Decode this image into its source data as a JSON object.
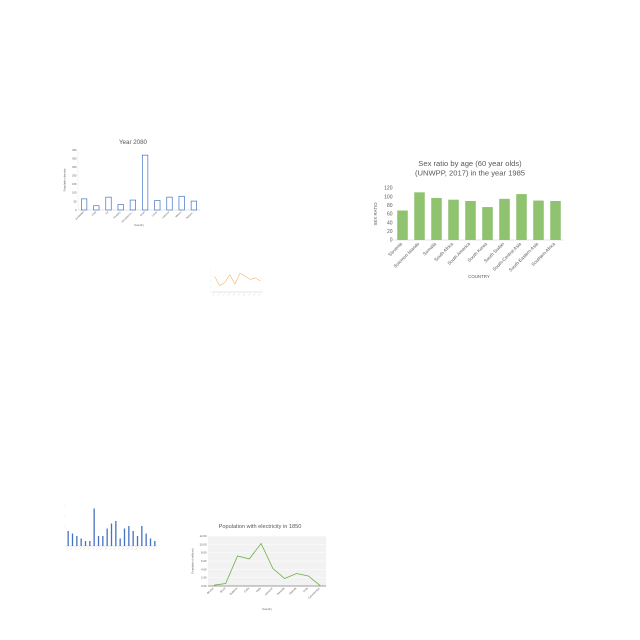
{
  "chart_data": [
    {
      "id": "c1",
      "type": "bar",
      "style": "outline",
      "title": "Year 2080",
      "xlabel": "Country",
      "ylabel": "Population density",
      "categories": [
        "Zimbabwe",
        "Chile",
        "Fiji",
        "Hungary",
        "Iran (Islamic...",
        "Israel",
        "Latvia",
        "Lebanon",
        "Mexico",
        "Netherl..."
      ],
      "values": [
        65,
        25,
        75,
        32,
        58,
        320,
        55,
        75,
        80,
        52
      ],
      "ylim": [
        0,
        350
      ],
      "yticks": [
        0,
        50,
        100,
        150,
        200,
        250,
        300,
        350
      ],
      "ytick_labels": [
        "0",
        "50",
        "100",
        "150",
        "200",
        "250",
        "300",
        "350"
      ],
      "color": "#4472c4"
    },
    {
      "id": "c2",
      "type": "bar",
      "title": "Sex ratio by age (60 year olds)\n(UNWPP, 2017) in the year 1985",
      "xlabel": "COUNTRY",
      "ylabel": "SEX RATIO",
      "categories": [
        "Slovenia",
        "Solomon Islands",
        "Somalia",
        "South Africa",
        "South America",
        "South Korea",
        "South Sudan",
        "South-Central Asia",
        "South-Eastern Asia",
        "Southern Africa"
      ],
      "values": [
        68,
        110,
        97,
        93,
        90,
        76,
        95,
        106,
        91,
        90
      ],
      "ylim": [
        0,
        120
      ],
      "yticks": [
        0,
        20,
        40,
        60,
        80,
        100,
        120
      ],
      "ytick_labels": [
        "0",
        "20",
        "40",
        "60",
        "80",
        "100",
        "120"
      ],
      "color": "#8fc370"
    },
    {
      "id": "c3",
      "type": "line",
      "title": "",
      "xlabel": "",
      "ylabel": "",
      "categories": [
        "",
        "",
        "",
        "",
        "",
        "",
        "",
        "",
        "",
        ""
      ],
      "values": [
        10,
        4,
        6,
        11,
        5,
        12,
        10,
        8,
        9,
        7
      ],
      "ylim": [
        0,
        14
      ],
      "color": "#ed9a45"
    },
    {
      "id": "c4",
      "type": "bar",
      "title": "",
      "xlabel": "",
      "ylabel": "",
      "categories": [
        "",
        "",
        "",
        "",
        "",
        "",
        "",
        "",
        "",
        "",
        "",
        "",
        "",
        "",
        "",
        "",
        "",
        "",
        "",
        "",
        ""
      ],
      "values": [
        6,
        5,
        4,
        3,
        2,
        2,
        15,
        4,
        4,
        7,
        9,
        10,
        3,
        7,
        8,
        6,
        4,
        8,
        5,
        3,
        2
      ],
      "ylim": [
        0,
        16
      ],
      "color": "#4472c4"
    },
    {
      "id": "c5",
      "type": "line",
      "title": "Population with electricity in 1850",
      "xlabel": "Country",
      "ylabel": "Population (millions)",
      "categories": [
        "Bhutan",
        "Brazil",
        "Bulgaria",
        "Cuba",
        "India",
        "Lebanon",
        "Rwanda",
        "Uganda",
        "Chile",
        "Turkmenistan"
      ],
      "values": [
        0.2,
        0.6,
        7.2,
        6.5,
        10.2,
        4.2,
        1.8,
        3.0,
        2.4,
        0.1
      ],
      "ylim": [
        0,
        12
      ],
      "yticks": [
        0,
        2,
        4,
        6,
        8,
        10,
        12
      ],
      "ytick_labels": [
        "0.00",
        "2.00",
        "4.00",
        "6.00",
        "8.00",
        "10.00",
        "12.00"
      ],
      "grid": true,
      "color": "#70ad47"
    }
  ]
}
